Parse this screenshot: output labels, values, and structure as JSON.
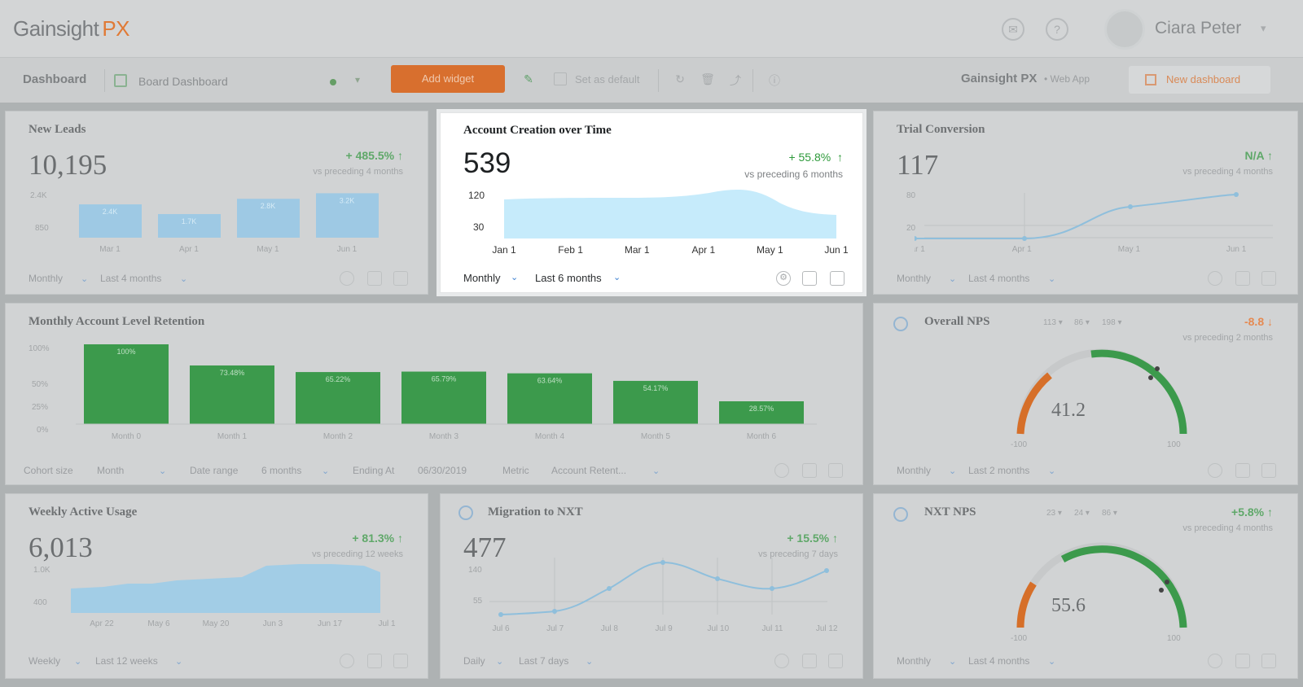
{
  "header": {
    "logo_main": "Gainsight",
    "logo_px": "PX",
    "user_name": "Ciara Peter"
  },
  "toolbar": {
    "dashboard_label": "Dashboard",
    "board_name": "Board Dashboard",
    "add_widget": "Add widget",
    "set_default": "Set as default",
    "app_name": "Gainsight PX",
    "app_suffix": "• Web App",
    "new_dashboard": "New dashboard"
  },
  "widgets": {
    "new_leads": {
      "title": "New Leads",
      "value": "10,195",
      "change": "+ 485.5%",
      "vs": "vs preceding 4 months",
      "y_ticks": [
        "2.4K",
        "850"
      ],
      "x_ticks": [
        "Mar 1",
        "Apr 1",
        "May 1",
        "Jun 1"
      ],
      "bar_labels": [
        "2.4K",
        "1.7K",
        "2.8K",
        "3.2K"
      ],
      "bars": [
        2.4,
        1.7,
        2.8,
        3.2
      ],
      "period": "Monthly",
      "range": "Last 4 months"
    },
    "account_creation": {
      "title": "Account Creation over Time",
      "value": "539",
      "change": "+ 55.8%",
      "vs": "vs preceding 6 months",
      "y_ticks": [
        "120",
        "30"
      ],
      "x_ticks": [
        "Jan 1",
        "Feb 1",
        "Mar 1",
        "Apr 1",
        "May 1",
        "Jun 1"
      ],
      "period": "Monthly",
      "range": "Last 6 months"
    },
    "trial_conversion": {
      "title": "Trial Conversion",
      "value": "117",
      "change": "N/A",
      "vs": "vs preceding 4 months",
      "y_ticks": [
        "80",
        "20"
      ],
      "x_ticks": [
        "Mar 1",
        "Apr 1",
        "May 1",
        "Jun 1"
      ],
      "period": "Monthly",
      "range": "Last 4 months"
    },
    "retention": {
      "title": "Monthly Account Level Retention",
      "y_ticks": [
        "100%",
        "50%",
        "25%",
        "0%"
      ],
      "x_ticks": [
        "Month 0",
        "Month 1",
        "Month 2",
        "Month 3",
        "Month 4",
        "Month 5",
        "Month 6"
      ],
      "bar_labels": [
        "100%",
        "73.48%",
        "65.22%",
        "65.79%",
        "63.64%",
        "54.17%",
        "28.57%"
      ],
      "bars": [
        100,
        73.48,
        65.22,
        65.79,
        63.64,
        54.17,
        28.57
      ],
      "cohort_label": "Cohort size",
      "cohort_value": "Month",
      "date_range_label": "Date range",
      "date_range_value": "6 months",
      "ending_label": "Ending At",
      "ending_value": "06/30/2019",
      "metric_label": "Metric",
      "metric_value": "Account Retent..."
    },
    "overall_nps": {
      "title": "Overall NPS",
      "stats": [
        "113 ▾",
        "86 ▾",
        "198 ▾"
      ],
      "value": "41.2",
      "gauge_min": "-100",
      "gauge_max": "100",
      "change": "-8.8",
      "vs": "vs preceding 2 months",
      "period": "Monthly",
      "range": "Last 2 months"
    },
    "weekly_active": {
      "title": "Weekly Active Usage",
      "value": "6,013",
      "change": "+ 81.3%",
      "vs": "vs preceding 12 weeks",
      "y_ticks": [
        "1.0K",
        "400"
      ],
      "x_ticks": [
        "Apr 22",
        "May 6",
        "May 20",
        "Jun 3",
        "Jun 17",
        "Jul 1"
      ],
      "period": "Weekly",
      "range": "Last 12 weeks"
    },
    "migration": {
      "title": "Migration to NXT",
      "value": "477",
      "change": "+ 15.5%",
      "vs": "vs preceding 7 days",
      "y_ticks": [
        "140",
        "55"
      ],
      "x_ticks": [
        "Jul 6",
        "Jul 7",
        "Jul 8",
        "Jul 9",
        "Jul 10",
        "Jul 11",
        "Jul 12"
      ],
      "period": "Daily",
      "range": "Last 7 days"
    },
    "nxt_nps": {
      "title": "NXT NPS",
      "stats": [
        "23 ▾",
        "24 ▾",
        "86 ▾"
      ],
      "value": "55.6",
      "gauge_min": "-100",
      "gauge_max": "100",
      "change": "+5.8%",
      "vs": "vs preceding 4 months",
      "period": "Monthly",
      "range": "Last 4 months"
    }
  },
  "colors": {
    "accent_orange": "#e07a36",
    "positive_green": "#2e9a3b",
    "bar_blue": "#9ec9e4",
    "bar_green": "#3c9a4c",
    "area_blue": "#c6ebfb",
    "link_blue": "#3a7fd0"
  },
  "icons": [
    "chat-icon",
    "help-icon",
    "settings-icon",
    "copy-icon",
    "trash-icon",
    "share-icon",
    "info-icon",
    "edit-icon"
  ]
}
